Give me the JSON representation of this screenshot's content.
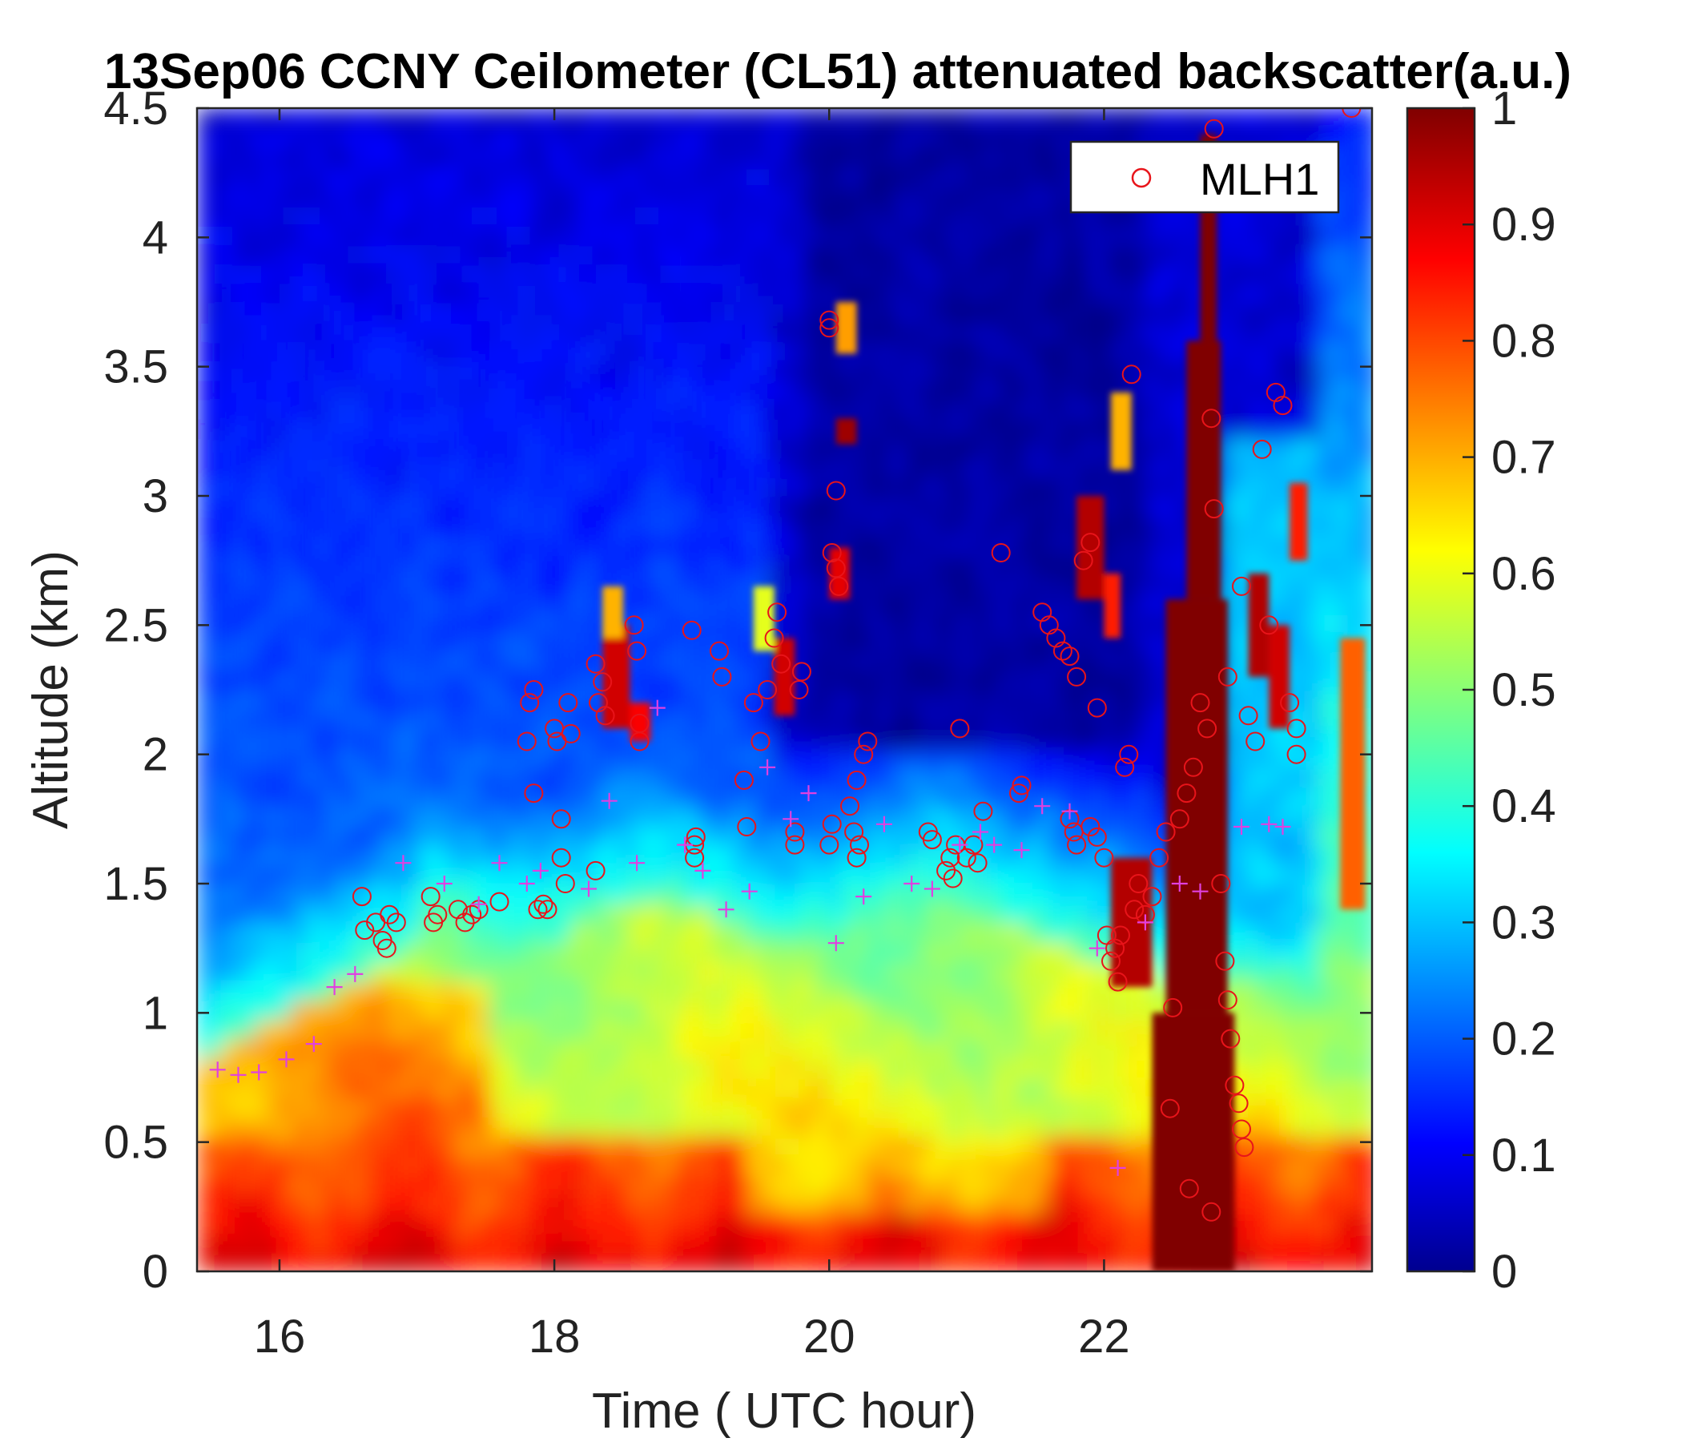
{
  "chart_data": {
    "type": "heatmap",
    "title": "13Sep06 CCNY Ceilometer (CL51) attenuated backscatter(a.u.)",
    "xlabel": "Time ( UTC hour)",
    "ylabel": "Altitude (km)",
    "xlim": [
      15.4,
      23.95
    ],
    "ylim": [
      0,
      4.5
    ],
    "x_ticks": [
      16,
      18,
      20,
      22
    ],
    "x_tick_labels": [
      "16",
      "18",
      "20",
      "22"
    ],
    "y_ticks": [
      0,
      0.5,
      1,
      1.5,
      2,
      2.5,
      3,
      3.5,
      4,
      4.5
    ],
    "y_tick_labels": [
      "0",
      "0.5",
      "1",
      "1.5",
      "2",
      "2.5",
      "3",
      "3.5",
      "4",
      "4.5"
    ],
    "colorbar": {
      "colormap": "jet",
      "range": [
        0,
        1
      ],
      "ticks": [
        0,
        0.1,
        0.2,
        0.3,
        0.4,
        0.5,
        0.6,
        0.7,
        0.8,
        0.9,
        1
      ],
      "tick_labels": [
        "0",
        "0.1",
        "0.2",
        "0.3",
        "0.4",
        "0.5",
        "0.6",
        "0.7",
        "0.8",
        "0.9",
        "1"
      ]
    },
    "legend": {
      "position": "top-right",
      "entries": [
        {
          "label": "MLH1",
          "marker": "circle",
          "color": "#e8141a"
        }
      ]
    },
    "series": [
      {
        "name": "MLH1",
        "marker": "circle",
        "color": "#e8141a",
        "points": [
          [
            16.6,
            1.45
          ],
          [
            16.62,
            1.32
          ],
          [
            16.7,
            1.35
          ],
          [
            16.75,
            1.28
          ],
          [
            16.78,
            1.25
          ],
          [
            16.8,
            1.38
          ],
          [
            16.85,
            1.35
          ],
          [
            17.1,
            1.45
          ],
          [
            17.12,
            1.35
          ],
          [
            17.15,
            1.38
          ],
          [
            17.3,
            1.4
          ],
          [
            17.35,
            1.35
          ],
          [
            17.4,
            1.38
          ],
          [
            17.45,
            1.4
          ],
          [
            17.6,
            1.43
          ],
          [
            17.8,
            2.05
          ],
          [
            17.82,
            2.2
          ],
          [
            17.85,
            2.25
          ],
          [
            17.85,
            1.85
          ],
          [
            17.88,
            1.4
          ],
          [
            17.92,
            1.42
          ],
          [
            17.95,
            1.4
          ],
          [
            18.0,
            2.1
          ],
          [
            18.02,
            2.05
          ],
          [
            18.05,
            1.75
          ],
          [
            18.05,
            1.6
          ],
          [
            18.08,
            1.5
          ],
          [
            18.1,
            2.2
          ],
          [
            18.12,
            2.08
          ],
          [
            18.3,
            1.55
          ],
          [
            18.3,
            2.35
          ],
          [
            18.32,
            2.2
          ],
          [
            18.35,
            2.28
          ],
          [
            18.37,
            2.15
          ],
          [
            18.58,
            2.5
          ],
          [
            18.6,
            2.4
          ],
          [
            18.62,
            2.12
          ],
          [
            18.62,
            2.05
          ],
          [
            19.0,
            2.48
          ],
          [
            19.02,
            1.65
          ],
          [
            19.02,
            1.6
          ],
          [
            19.03,
            1.68
          ],
          [
            19.2,
            2.4
          ],
          [
            19.22,
            2.3
          ],
          [
            19.38,
            1.9
          ],
          [
            19.4,
            1.72
          ],
          [
            19.45,
            2.2
          ],
          [
            19.5,
            2.05
          ],
          [
            19.55,
            2.25
          ],
          [
            19.6,
            2.45
          ],
          [
            19.62,
            2.55
          ],
          [
            19.65,
            2.35
          ],
          [
            19.75,
            1.7
          ],
          [
            19.75,
            1.65
          ],
          [
            19.78,
            2.25
          ],
          [
            19.8,
            2.32
          ],
          [
            20.0,
            3.68
          ],
          [
            20.0,
            3.65
          ],
          [
            20.02,
            2.78
          ],
          [
            20.05,
            3.02
          ],
          [
            20.02,
            1.73
          ],
          [
            20.0,
            1.65
          ],
          [
            20.05,
            2.72
          ],
          [
            20.07,
            2.65
          ],
          [
            20.15,
            1.8
          ],
          [
            20.18,
            1.7
          ],
          [
            20.2,
            1.6
          ],
          [
            20.2,
            1.9
          ],
          [
            20.22,
            1.65
          ],
          [
            20.25,
            2.0
          ],
          [
            20.28,
            2.05
          ],
          [
            20.72,
            1.7
          ],
          [
            20.75,
            1.67
          ],
          [
            20.85,
            1.55
          ],
          [
            20.88,
            1.6
          ],
          [
            20.9,
            1.52
          ],
          [
            20.92,
            1.65
          ],
          [
            20.95,
            2.1
          ],
          [
            21.0,
            1.6
          ],
          [
            21.05,
            1.65
          ],
          [
            21.08,
            1.58
          ],
          [
            21.12,
            1.78
          ],
          [
            21.25,
            2.78
          ],
          [
            21.38,
            1.85
          ],
          [
            21.4,
            1.88
          ],
          [
            21.55,
            2.55
          ],
          [
            21.6,
            2.5
          ],
          [
            21.65,
            2.45
          ],
          [
            21.7,
            2.4
          ],
          [
            21.75,
            2.38
          ],
          [
            21.8,
            2.3
          ],
          [
            21.85,
            2.75
          ],
          [
            21.9,
            2.82
          ],
          [
            21.75,
            1.75
          ],
          [
            21.78,
            1.7
          ],
          [
            21.8,
            1.65
          ],
          [
            21.9,
            1.72
          ],
          [
            21.95,
            1.68
          ],
          [
            21.95,
            2.18
          ],
          [
            22.0,
            1.6
          ],
          [
            22.02,
            1.3
          ],
          [
            22.05,
            1.2
          ],
          [
            22.08,
            1.25
          ],
          [
            22.1,
            1.12
          ],
          [
            22.12,
            1.3
          ],
          [
            22.15,
            1.95
          ],
          [
            22.18,
            2.0
          ],
          [
            22.2,
            3.47
          ],
          [
            22.22,
            1.4
          ],
          [
            22.25,
            1.5
          ],
          [
            22.3,
            1.38
          ],
          [
            22.35,
            1.45
          ],
          [
            22.4,
            1.6
          ],
          [
            22.45,
            1.7
          ],
          [
            22.5,
            1.02
          ],
          [
            22.48,
            0.63
          ],
          [
            22.55,
            1.75
          ],
          [
            22.6,
            1.85
          ],
          [
            22.62,
            0.32
          ],
          [
            22.65,
            1.95
          ],
          [
            22.7,
            2.2
          ],
          [
            22.75,
            2.1
          ],
          [
            22.78,
            3.3
          ],
          [
            22.8,
            4.42
          ],
          [
            22.8,
            2.95
          ],
          [
            22.85,
            1.5
          ],
          [
            22.88,
            1.2
          ],
          [
            22.9,
            1.05
          ],
          [
            22.92,
            0.9
          ],
          [
            22.95,
            0.72
          ],
          [
            22.98,
            0.65
          ],
          [
            23.0,
            0.55
          ],
          [
            23.02,
            0.48
          ],
          [
            22.78,
            0.23
          ],
          [
            22.9,
            2.3
          ],
          [
            23.0,
            2.65
          ],
          [
            23.05,
            2.15
          ],
          [
            23.1,
            2.05
          ],
          [
            23.15,
            3.18
          ],
          [
            23.2,
            2.5
          ],
          [
            23.25,
            3.4
          ],
          [
            23.3,
            3.35
          ],
          [
            23.35,
            2.2
          ],
          [
            23.4,
            2.1
          ],
          [
            23.4,
            2.0
          ],
          [
            23.8,
            4.5
          ]
        ]
      },
      {
        "name": "",
        "marker": "plus",
        "color": "#e040e0",
        "points": [
          [
            15.55,
            0.78
          ],
          [
            15.7,
            0.76
          ],
          [
            15.85,
            0.77
          ],
          [
            16.05,
            0.82
          ],
          [
            16.25,
            0.88
          ],
          [
            16.4,
            1.1
          ],
          [
            16.55,
            1.15
          ],
          [
            16.9,
            1.58
          ],
          [
            17.2,
            1.5
          ],
          [
            17.45,
            1.42
          ],
          [
            17.6,
            1.58
          ],
          [
            17.8,
            1.5
          ],
          [
            17.9,
            1.55
          ],
          [
            18.25,
            1.48
          ],
          [
            18.4,
            1.82
          ],
          [
            18.6,
            1.58
          ],
          [
            18.75,
            2.18
          ],
          [
            18.95,
            1.65
          ],
          [
            19.08,
            1.55
          ],
          [
            19.25,
            1.4
          ],
          [
            19.42,
            1.47
          ],
          [
            19.55,
            1.95
          ],
          [
            19.72,
            1.75
          ],
          [
            19.85,
            1.85
          ],
          [
            20.05,
            1.27
          ],
          [
            20.25,
            1.45
          ],
          [
            20.4,
            1.73
          ],
          [
            20.6,
            1.5
          ],
          [
            20.75,
            1.48
          ],
          [
            20.95,
            1.65
          ],
          [
            21.1,
            1.7
          ],
          [
            21.2,
            1.65
          ],
          [
            21.4,
            1.63
          ],
          [
            21.55,
            1.8
          ],
          [
            21.75,
            1.78
          ],
          [
            21.95,
            1.25
          ],
          [
            22.1,
            0.4
          ],
          [
            22.3,
            1.35
          ],
          [
            22.55,
            1.5
          ],
          [
            22.7,
            1.47
          ],
          [
            23.0,
            1.72
          ],
          [
            23.2,
            1.73
          ],
          [
            23.3,
            1.72
          ]
        ]
      }
    ],
    "field_features": [
      {
        "kind": "surface aerosol layer",
        "x_range": [
          15.4,
          23.95
        ],
        "y_range": [
          0,
          0.5
        ],
        "value_range": [
          0.75,
          0.92
        ]
      },
      {
        "kind": "mixed layer",
        "x_range": [
          15.4,
          23.95
        ],
        "y_range": [
          0,
          1.5
        ],
        "value_range": [
          0.45,
          0.65
        ]
      },
      {
        "kind": "cloud column",
        "x_range": [
          22.35,
          22.95
        ],
        "y_range": [
          0,
          4.4
        ],
        "value": 1.0
      },
      {
        "kind": "cloud patches",
        "y_range": [
          2.0,
          3.3
        ],
        "value": 0.95
      },
      {
        "kind": "free troposphere",
        "y_range": [
          2.0,
          4.5
        ],
        "value_range": [
          0.0,
          0.2
        ]
      },
      {
        "kind": "elevated layer",
        "x_range": [
          23.7,
          23.95
        ],
        "y_range": [
          1.4,
          2.5
        ],
        "value": 0.75
      }
    ]
  }
}
